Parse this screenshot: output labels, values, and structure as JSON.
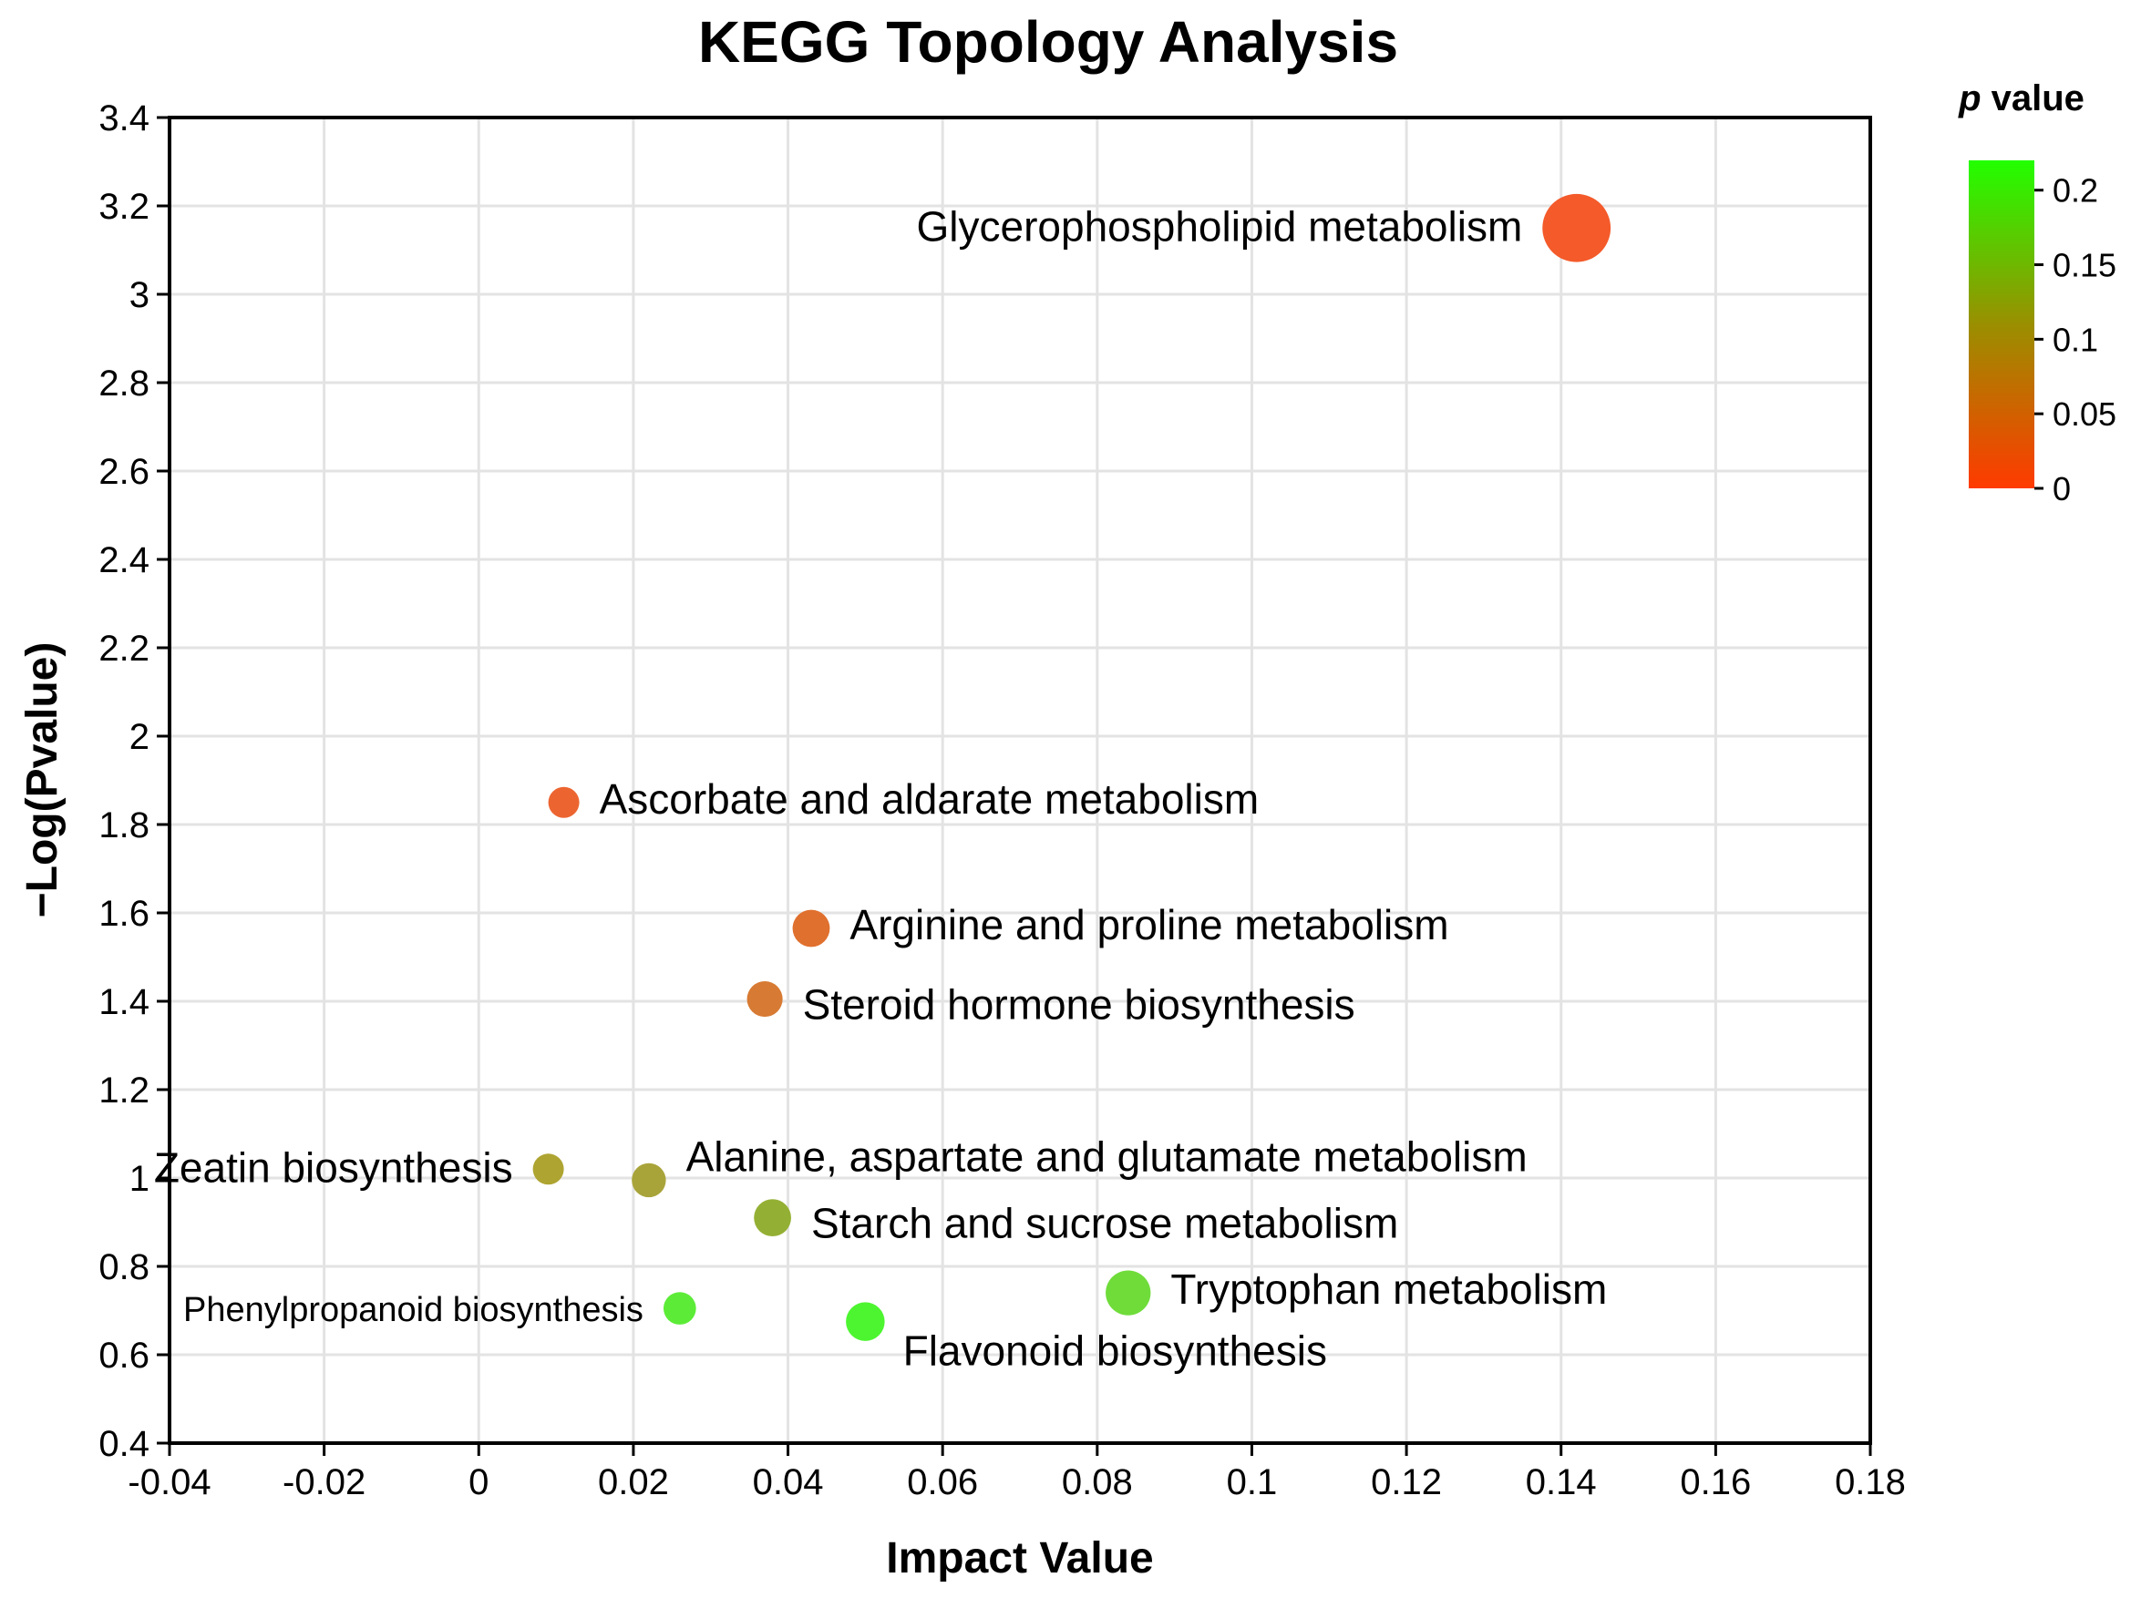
{
  "chart_data": {
    "type": "scatter",
    "title": "KEGG Topology Analysis",
    "xlabel": "Impact Value",
    "ylabel": "−Log(Pvalue)",
    "xlim": [
      -0.04,
      0.18
    ],
    "ylim": [
      0.4,
      3.4
    ],
    "xticks": [
      -0.04,
      -0.02,
      0,
      0.02,
      0.04,
      0.06,
      0.08,
      0.1,
      0.12,
      0.14,
      0.16,
      0.18
    ],
    "xtick_labels": [
      "-0.04",
      "-0.02",
      "0",
      "0.02",
      "0.04",
      "0.06",
      "0.08",
      "0.1",
      "0.12",
      "0.14",
      "0.16",
      "0.18"
    ],
    "yticks": [
      0.4,
      0.6,
      0.8,
      1.0,
      1.2,
      1.4,
      1.6,
      1.8,
      2.0,
      2.2,
      2.4,
      2.6,
      2.8,
      3.0,
      3.2,
      3.4
    ],
    "ytick_labels": [
      "0.4",
      "0.6",
      "0.8",
      "1",
      "1.2",
      "1.4",
      "1.6",
      "1.8",
      "2",
      "2.2",
      "2.4",
      "2.6",
      "2.8",
      "3",
      "3.2",
      "3.4"
    ],
    "grid": true,
    "colorbar": {
      "title_italic": "p",
      "title_rest": " value",
      "range": [
        0,
        0.22
      ],
      "ticks": [
        0,
        0.05,
        0.1,
        0.15,
        0.2
      ],
      "tick_labels": [
        "0",
        "0.05",
        "0.1",
        "0.15",
        "0.2"
      ],
      "color_low": "#ff3a00",
      "color_mid": "#9a8f00",
      "color_high": "#22ff00",
      "placement": "right"
    },
    "points": [
      {
        "name": "Glycerophospholipid metabolism",
        "x": 0.142,
        "y": 3.15,
        "p": 0.0007,
        "size": 2.2,
        "color": "#f45a2a",
        "label_side": "left"
      },
      {
        "name": "Ascorbate and aldarate metabolism",
        "x": 0.011,
        "y": 1.85,
        "p": 0.014,
        "size": 1.0,
        "color": "#ec6531",
        "label_side": "right"
      },
      {
        "name": "Arginine and proline metabolism",
        "x": 0.043,
        "y": 1.565,
        "p": 0.027,
        "size": 1.2,
        "color": "#e0702e",
        "label_side": "right"
      },
      {
        "name": "Steroid hormone biosynthesis",
        "x": 0.037,
        "y": 1.405,
        "p": 0.039,
        "size": 1.15,
        "color": "#d77a33",
        "label_side": "right"
      },
      {
        "name": "Zeatin biosynthesis",
        "x": 0.009,
        "y": 1.02,
        "p": 0.095,
        "size": 1.0,
        "color": "#aea431",
        "label_side": "left"
      },
      {
        "name": "Alanine, aspartate and glutamate metabolism",
        "x": 0.022,
        "y": 0.995,
        "p": 0.101,
        "size": 1.1,
        "color": "#a9a43a",
        "label_side": "right"
      },
      {
        "name": "Starch and sucrose metabolism",
        "x": 0.038,
        "y": 0.91,
        "p": 0.123,
        "size": 1.2,
        "color": "#94b034",
        "label_side": "right"
      },
      {
        "name": "Tryptophan metabolism",
        "x": 0.084,
        "y": 0.74,
        "p": 0.182,
        "size": 1.45,
        "color": "#6fdc3a",
        "label_side": "right"
      },
      {
        "name": "Phenylpropanoid biosynthesis",
        "x": 0.026,
        "y": 0.705,
        "p": 0.197,
        "size": 1.05,
        "color": "#5cec37",
        "label_side": "left",
        "small_label": true
      },
      {
        "name": "Flavonoid biosynthesis",
        "x": 0.05,
        "y": 0.675,
        "p": 0.211,
        "size": 1.25,
        "color": "#4df530",
        "label_side": "below-right"
      }
    ]
  }
}
